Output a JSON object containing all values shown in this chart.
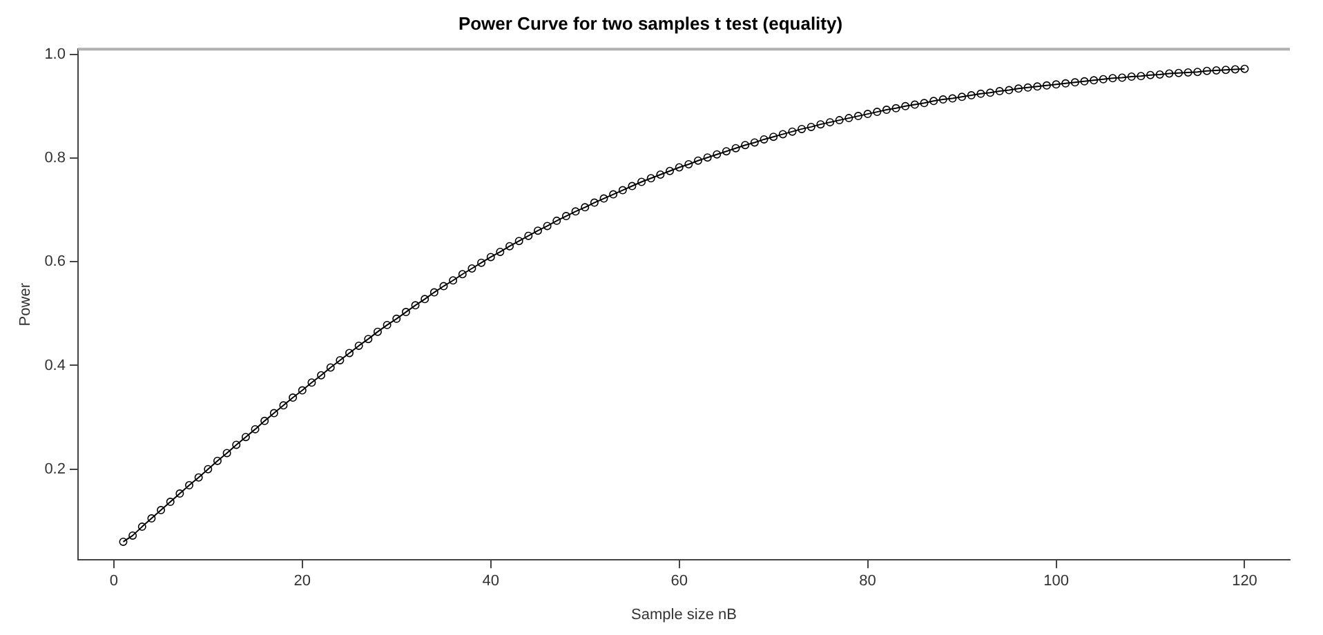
{
  "chart_data": {
    "type": "line",
    "title": "Power Curve for two samples t test (equality)",
    "xlabel": "Sample size nB",
    "ylabel": "Power",
    "x": [
      1,
      2,
      3,
      4,
      5,
      6,
      7,
      8,
      9,
      10,
      11,
      12,
      13,
      14,
      15,
      16,
      17,
      18,
      19,
      20,
      21,
      22,
      23,
      24,
      25,
      26,
      27,
      28,
      29,
      30,
      31,
      32,
      33,
      34,
      35,
      36,
      37,
      38,
      39,
      40,
      41,
      42,
      43,
      44,
      45,
      46,
      47,
      48,
      49,
      50,
      51,
      52,
      53,
      54,
      55,
      56,
      57,
      58,
      59,
      60,
      61,
      62,
      63,
      64,
      65,
      66,
      67,
      68,
      69,
      70,
      71,
      72,
      73,
      74,
      75,
      76,
      77,
      78,
      79,
      80,
      81,
      82,
      83,
      84,
      85,
      86,
      87,
      88,
      89,
      90,
      91,
      92,
      93,
      94,
      95,
      96,
      97,
      98,
      99,
      100,
      101,
      102,
      103,
      104,
      105,
      106,
      107,
      108,
      109,
      110,
      111,
      112,
      113,
      114,
      115,
      116,
      117,
      118,
      119,
      120
    ],
    "series": [
      {
        "color": "#000000",
        "values": [
          0.06,
          0.072,
          0.089,
          0.105,
          0.121,
          0.137,
          0.153,
          0.169,
          0.184,
          0.2,
          0.216,
          0.231,
          0.247,
          0.262,
          0.277,
          0.293,
          0.308,
          0.323,
          0.338,
          0.352,
          0.367,
          0.381,
          0.396,
          0.41,
          0.424,
          0.438,
          0.451,
          0.465,
          0.478,
          0.49,
          0.503,
          0.516,
          0.528,
          0.541,
          0.553,
          0.564,
          0.576,
          0.587,
          0.598,
          0.609,
          0.619,
          0.63,
          0.64,
          0.65,
          0.66,
          0.669,
          0.679,
          0.688,
          0.697,
          0.705,
          0.714,
          0.722,
          0.73,
          0.738,
          0.746,
          0.754,
          0.761,
          0.768,
          0.775,
          0.782,
          0.788,
          0.795,
          0.801,
          0.807,
          0.813,
          0.819,
          0.825,
          0.83,
          0.836,
          0.841,
          0.846,
          0.851,
          0.856,
          0.86,
          0.865,
          0.869,
          0.873,
          0.877,
          0.881,
          0.885,
          0.889,
          0.893,
          0.896,
          0.9,
          0.903,
          0.906,
          0.91,
          0.913,
          0.915,
          0.918,
          0.921,
          0.924,
          0.926,
          0.929,
          0.931,
          0.934,
          0.936,
          0.938,
          0.94,
          0.942,
          0.944,
          0.946,
          0.948,
          0.95,
          0.952,
          0.954,
          0.955,
          0.957,
          0.958,
          0.96,
          0.961,
          0.963,
          0.964,
          0.965,
          0.966,
          0.968,
          0.969,
          0.97,
          0.971,
          0.972
        ]
      }
    ],
    "xlim": [
      -3.8,
      124.8
    ],
    "xticks": [
      0,
      20,
      40,
      60,
      80,
      100,
      120
    ],
    "ylim": [
      0.025,
      1.01
    ],
    "yticks": [
      0.2,
      0.4,
      0.6,
      0.8,
      {
        "value": 1,
        "label": "1.0"
      }
    ],
    "grid": false,
    "legend": false,
    "marker": "circle",
    "line_style": "solid"
  }
}
